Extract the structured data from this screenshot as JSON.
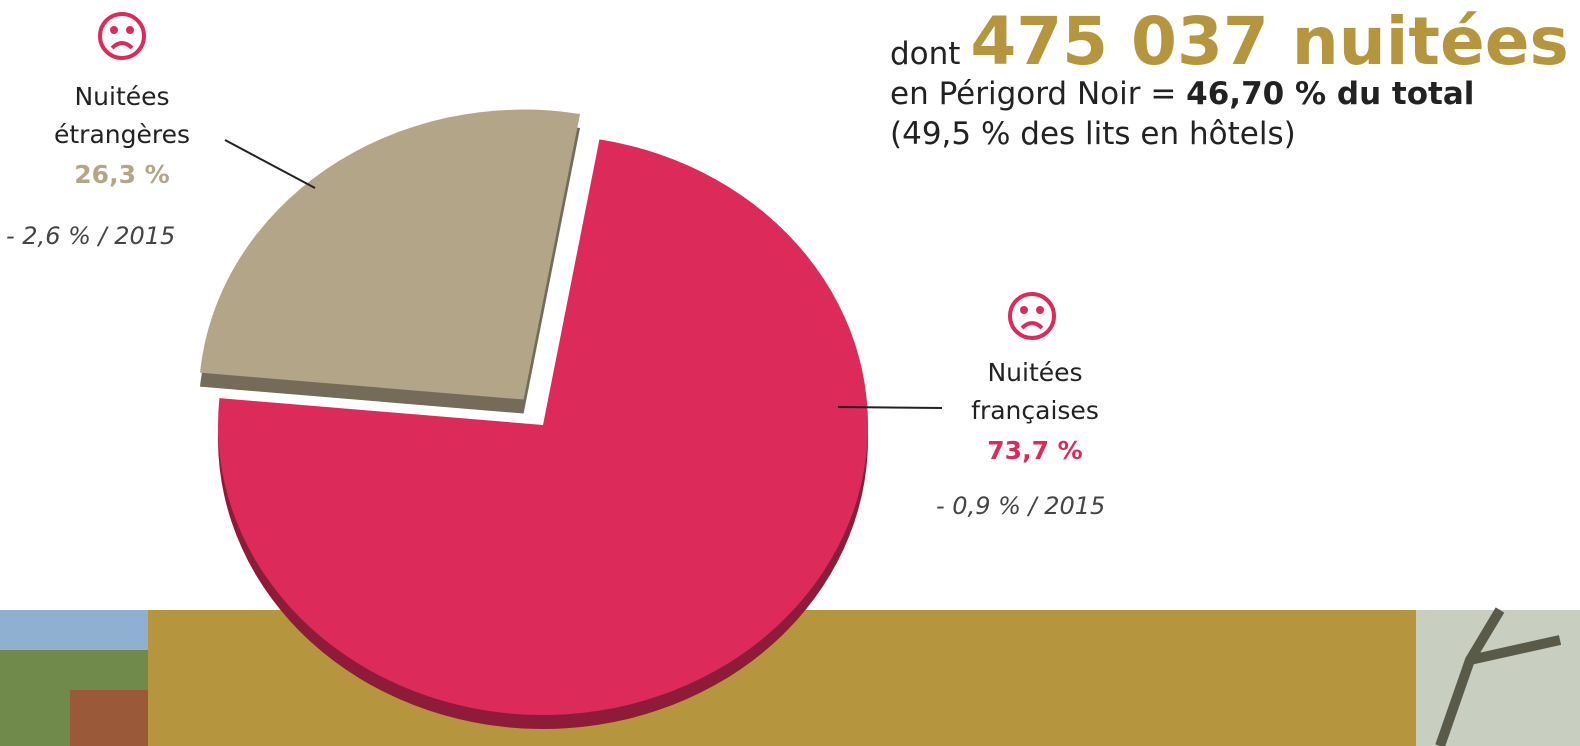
{
  "chart_data": {
    "type": "pie",
    "categories": [
      "Nuitées étrangères",
      "Nuitées françaises"
    ],
    "values": [
      26.3,
      73.7
    ],
    "value_labels": [
      "26,3 %",
      "73,7 %"
    ],
    "colors": [
      "#b3a588",
      "#dc2a5a"
    ],
    "annotations": [
      "- 2,6 % / 2015",
      "- 0,9 % / 2015"
    ],
    "headline": {
      "prefix": "dont",
      "figure": "475 037 nuitées",
      "line2": "en Périgord Noir =",
      "line2_bold": "46,70 % du total",
      "line3": "(49,5 % des lits en hôtels)"
    }
  }
}
